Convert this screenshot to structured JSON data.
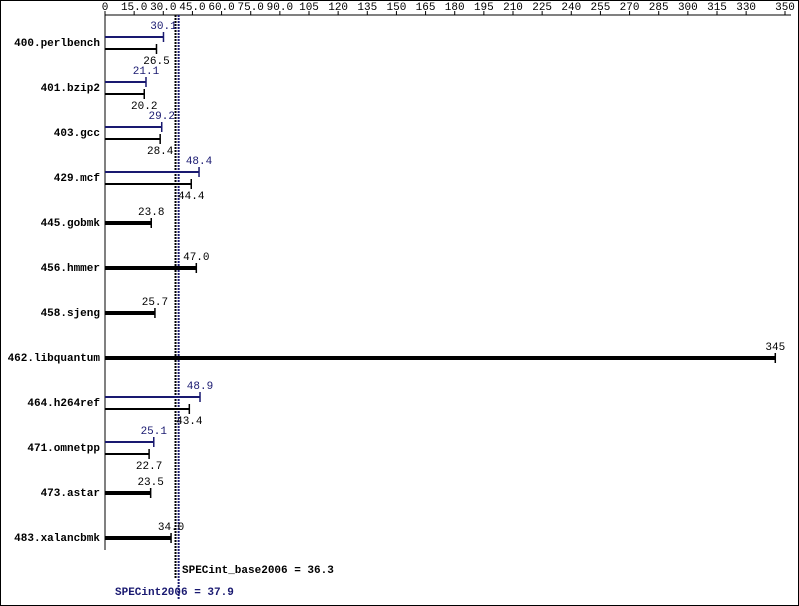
{
  "chart_data": {
    "type": "bar",
    "orientation": "horizontal",
    "categories": [
      "400.perlbench",
      "401.bzip2",
      "403.gcc",
      "429.mcf",
      "445.gobmk",
      "456.hmmer",
      "458.sjeng",
      "462.libquantum",
      "464.h264ref",
      "471.omnetpp",
      "473.astar",
      "483.xalancbmk"
    ],
    "series": [
      {
        "color": "#191970",
        "values": [
          30.1,
          21.1,
          29.2,
          48.4,
          null,
          null,
          null,
          null,
          48.9,
          25.1,
          null,
          null
        ]
      },
      {
        "color": "#000000",
        "values": [
          26.5,
          20.2,
          28.4,
          44.4,
          23.8,
          47,
          25.7,
          345,
          43.4,
          22.7,
          23.5,
          34
        ],
        "value_labels": [
          "26.5",
          "20.2",
          "28.4",
          "44.4",
          "23.8",
          "47.0",
          "25.7",
          "345",
          "43.4",
          "22.7",
          "23.5",
          "34.0"
        ]
      }
    ],
    "xlim": [
      0,
      350
    ],
    "xticks": [
      0,
      {
        "value": 15,
        "label": "15.0"
      },
      {
        "value": 30,
        "label": "30.0"
      },
      {
        "value": 45,
        "label": "45.0"
      },
      {
        "value": 60,
        "label": "60.0"
      },
      {
        "value": 75,
        "label": "75.0"
      },
      {
        "value": 90,
        "label": "90.0"
      },
      105,
      120,
      135,
      150,
      165,
      180,
      195,
      210,
      225,
      240,
      255,
      270,
      285,
      300,
      315,
      330,
      350
    ],
    "reference_lines": [
      {
        "label": "SPECint_base2006 = 36.3",
        "value": 36.3,
        "color": "#000000"
      },
      {
        "label": "SPECint2006 = 37.9",
        "value": 37.9,
        "color": "#191970"
      }
    ]
  }
}
